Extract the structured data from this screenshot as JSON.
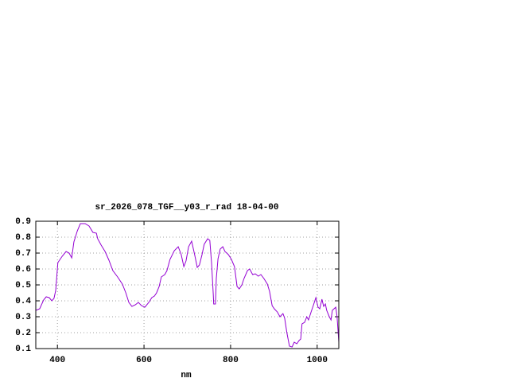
{
  "chart_data": {
    "type": "line",
    "title": "sr_2026_078_TGF__y03_r_rad 18-04-00",
    "x_label": "nm",
    "xlim": [
      350,
      1050
    ],
    "xticks": [
      400,
      600,
      800,
      1000
    ],
    "ylim": [
      0.1,
      0.9
    ],
    "yticks": [
      0.1,
      0.2,
      0.3,
      0.4,
      0.5,
      0.6,
      0.7,
      0.8,
      0.9
    ],
    "grid": true,
    "series": [
      {
        "color": "#9400d3",
        "x": [
          350,
          359,
          368,
          374,
          381,
          387,
          392,
          396,
          401,
          411,
          420,
          427,
          433,
          438,
          446,
          453,
          464,
          473,
          482,
          490,
          493,
          501,
          510,
          519,
          528,
          539,
          550,
          558,
          565,
          572,
          580,
          587,
          594,
          602,
          611,
          618,
          624,
          629,
          635,
          640,
          648,
          653,
          660,
          670,
          679,
          686,
          692,
          697,
          703,
          710,
          717,
          723,
          728,
          734,
          739,
          747,
          752,
          756,
          760,
          761,
          765,
          767,
          771,
          776,
          782,
          787,
          795,
          802,
          809,
          815,
          820,
          826,
          831,
          839,
          844,
          851,
          857,
          864,
          870,
          877,
          885,
          890,
          896,
          901,
          908,
          914,
          921,
          925,
          930,
          936,
          942,
          947,
          953,
          958,
          962,
          965,
          971,
          976,
          980,
          986,
          991,
          997,
          1002,
          1006,
          1011,
          1015,
          1019,
          1022,
          1028,
          1032,
          1035,
          1039,
          1043,
          1046,
          1050
        ],
        "values": [
          0.34,
          0.35,
          0.405,
          0.425,
          0.42,
          0.4,
          0.415,
          0.465,
          0.64,
          0.68,
          0.71,
          0.7,
          0.67,
          0.77,
          0.84,
          0.885,
          0.885,
          0.87,
          0.83,
          0.825,
          0.79,
          0.75,
          0.71,
          0.655,
          0.59,
          0.55,
          0.505,
          0.45,
          0.39,
          0.365,
          0.375,
          0.39,
          0.37,
          0.36,
          0.39,
          0.42,
          0.43,
          0.45,
          0.49,
          0.55,
          0.565,
          0.59,
          0.66,
          0.715,
          0.74,
          0.69,
          0.615,
          0.65,
          0.74,
          0.775,
          0.69,
          0.61,
          0.625,
          0.69,
          0.755,
          0.79,
          0.78,
          0.64,
          0.44,
          0.38,
          0.38,
          0.54,
          0.665,
          0.725,
          0.74,
          0.71,
          0.69,
          0.66,
          0.615,
          0.49,
          0.475,
          0.5,
          0.54,
          0.59,
          0.6,
          0.565,
          0.57,
          0.555,
          0.565,
          0.54,
          0.505,
          0.46,
          0.37,
          0.35,
          0.33,
          0.3,
          0.32,
          0.29,
          0.2,
          0.115,
          0.11,
          0.14,
          0.13,
          0.15,
          0.16,
          0.255,
          0.265,
          0.3,
          0.28,
          0.33,
          0.37,
          0.42,
          0.36,
          0.35,
          0.41,
          0.365,
          0.38,
          0.34,
          0.3,
          0.28,
          0.34,
          0.35,
          0.36,
          0.3,
          0.14
        ]
      }
    ]
  }
}
